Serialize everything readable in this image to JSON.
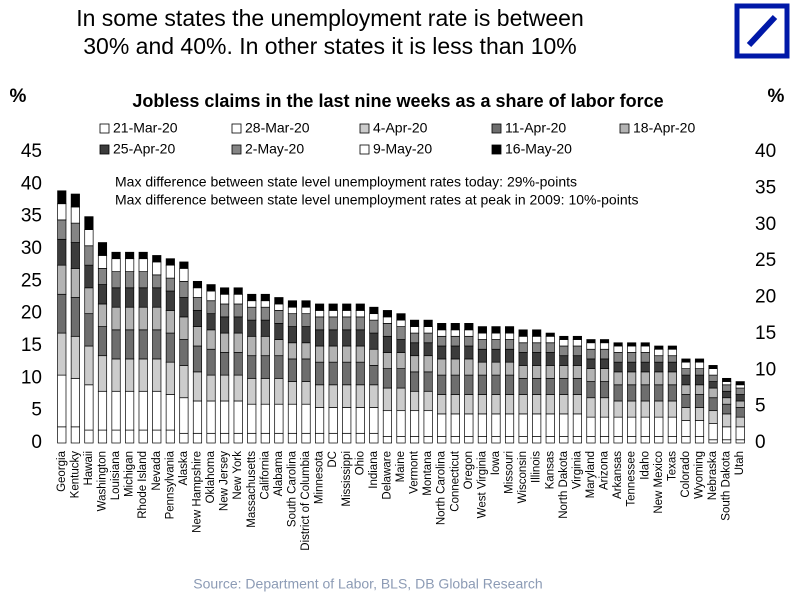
{
  "chart_data": {
    "type": "bar",
    "stacked": true,
    "title": [
      "In some states the unemployment rate is between",
      "30% and 40%. In other states it is less than 10%"
    ],
    "subtitle": "Jobless claims in the last nine weeks as a share of labor force",
    "y_label": "%",
    "y2_label": "%",
    "annotations": [
      "Max difference between state level unemployment rates today: 29%-points",
      "Max difference between state level unemployment rates at peak in 2009: 10%-points"
    ],
    "source": "Source: Department of Labor, BLS, DB Global Research",
    "ylim": [
      0,
      45
    ],
    "yticks": [
      0,
      5,
      10,
      15,
      20,
      25,
      30,
      35,
      40,
      45
    ],
    "y2lim": [
      0,
      40
    ],
    "y2ticks": [
      0,
      5,
      10,
      15,
      20,
      25,
      30,
      35,
      40
    ],
    "grid": false,
    "categories": [
      "Georgia",
      "Kentucky",
      "Hawaii",
      "Washington",
      "Louisiana",
      "Michigan",
      "Rhode Island",
      "Nevada",
      "Pennsylvania",
      "Alaska",
      "New Hampshire",
      "Oklahoma",
      "New Jersey",
      "New York",
      "Massachusetts",
      "California",
      "Alabama",
      "South Carolina",
      "District of Columbia",
      "Minnesota",
      "DC",
      "Mississippi",
      "Ohio",
      "Indiana",
      "Delaware",
      "Maine",
      "Vermont",
      "Montana",
      "North Carolina",
      "Connecticut",
      "Oregon",
      "West Virginia",
      "Iowa",
      "Missouri",
      "Wisconsin",
      "Illinois",
      "Kansas",
      "North Dakota",
      "Virginia",
      "Maryland",
      "Arizona",
      "Arkansas",
      "Tennessee",
      "Idaho",
      "New Mexico",
      "Texas",
      "Colorado",
      "Wyoming",
      "Nebraska",
      "South Dakota",
      "Utah"
    ],
    "series": [
      {
        "name": "21-Mar-20",
        "color": "#ffffff",
        "values": [
          2.5,
          2.5,
          2,
          2,
          2,
          2,
          2,
          2,
          2,
          1.5,
          1.5,
          1.5,
          1.5,
          1.5,
          1.5,
          1.5,
          1.5,
          1.5,
          1.5,
          1.5,
          1.5,
          1.5,
          1.5,
          1.5,
          1,
          1,
          1,
          1,
          1,
          1,
          1,
          1,
          1,
          1,
          1,
          1,
          1,
          1,
          1,
          1,
          1,
          1,
          1,
          1,
          1,
          1,
          1,
          1,
          0.5,
          0.5,
          0.5
        ]
      },
      {
        "name": "28-Mar-20",
        "color": "#ffffff",
        "values": [
          8,
          7.5,
          7,
          6,
          6,
          6,
          6,
          6,
          5.5,
          5.5,
          5,
          5,
          5,
          5,
          4.5,
          4.5,
          4.5,
          4.5,
          4.5,
          4,
          4,
          4,
          4,
          4,
          4,
          4,
          4,
          4,
          3.5,
          3.5,
          3.5,
          3.5,
          3.5,
          3.5,
          3.5,
          3.5,
          3.5,
          3.5,
          3.5,
          3,
          3,
          3,
          3,
          3,
          3,
          3,
          2.5,
          2.5,
          2.5,
          2,
          2
        ]
      },
      {
        "name": "4-Apr-20",
        "color": "#cccccc",
        "values": [
          6.5,
          6.5,
          6,
          5.5,
          5,
          5,
          5,
          5,
          5,
          5,
          4.5,
          4,
          4,
          4,
          4,
          4,
          4,
          3.5,
          3.5,
          3.5,
          3.5,
          3.5,
          3.5,
          3.5,
          3.5,
          3.5,
          3,
          3,
          3,
          3,
          3,
          3,
          3,
          3,
          3,
          3,
          3,
          3,
          3,
          3,
          3,
          2.5,
          2.5,
          2.5,
          2.5,
          2.5,
          2,
          2,
          2,
          2,
          1.5
        ]
      },
      {
        "name": "11-Apr-20",
        "color": "#6e6e6e",
        "values": [
          6,
          6,
          5,
          4.5,
          4.5,
          4.5,
          4.5,
          4.5,
          4.5,
          4,
          4,
          4,
          3.5,
          3.5,
          3.5,
          3.5,
          3.5,
          3.5,
          3.5,
          3.5,
          3.5,
          3.5,
          3.5,
          3,
          3,
          3,
          3,
          3,
          3,
          3,
          3,
          3,
          3,
          3,
          2.5,
          2.5,
          2.5,
          2.5,
          2.5,
          2.5,
          2.5,
          2.5,
          2.5,
          2.5,
          2.5,
          2.5,
          2,
          2,
          2,
          1.5,
          1.5
        ]
      },
      {
        "name": "18-Apr-20",
        "color": "#b3b3b3",
        "values": [
          4.5,
          4.5,
          4,
          3.5,
          3.5,
          3.5,
          3.5,
          3.5,
          3.5,
          3.5,
          3,
          3,
          3,
          3,
          3,
          3,
          2.5,
          2.5,
          2.5,
          2.5,
          2.5,
          2.5,
          2.5,
          2.5,
          2.5,
          2.5,
          2.5,
          2.5,
          2.5,
          2.5,
          2.5,
          2,
          2,
          2,
          2,
          2,
          2,
          2,
          2,
          2,
          2,
          2,
          2,
          2,
          2,
          2,
          1.5,
          1.5,
          1.5,
          1,
          1
        ]
      },
      {
        "name": "25-Apr-20",
        "color": "#3c3c3c",
        "values": [
          4,
          4,
          3.5,
          3,
          3,
          3,
          3,
          3,
          3,
          3,
          2.5,
          2.5,
          2.5,
          2.5,
          2.5,
          2.5,
          2.5,
          2.5,
          2.5,
          2.5,
          2.5,
          2.5,
          2.5,
          2.5,
          2.5,
          2,
          2,
          2,
          2,
          2,
          2,
          2,
          2,
          2,
          2,
          2,
          2,
          1.5,
          1.5,
          1.5,
          1.5,
          1.5,
          1.5,
          1.5,
          1.5,
          1.5,
          1.5,
          1.5,
          1,
          1,
          1
        ]
      },
      {
        "name": "2-May-20",
        "color": "#858585",
        "values": [
          3,
          3,
          3,
          2.5,
          2.5,
          2.5,
          2.5,
          2,
          2,
          2.5,
          2,
          2,
          2,
          2,
          2,
          2,
          2,
          2,
          2,
          2,
          2,
          2,
          2,
          2,
          2,
          2,
          1.5,
          1.5,
          1.5,
          1.5,
          1.5,
          1.5,
          1.5,
          1.5,
          1.5,
          1.5,
          1.5,
          1.5,
          1.5,
          1.5,
          1.5,
          1.5,
          1.5,
          1.5,
          1,
          1,
          1,
          1,
          1,
          1,
          1
        ]
      },
      {
        "name": "9-May-20",
        "color": "#ffffff",
        "values": [
          2.5,
          2.5,
          2.5,
          2,
          2,
          2,
          2,
          2,
          2,
          2,
          1.5,
          1.5,
          1.5,
          1.5,
          1,
          1,
          1,
          1,
          1,
          1,
          1,
          1,
          1,
          1,
          1,
          1,
          1,
          1,
          1,
          1,
          1,
          1,
          1,
          1,
          1,
          1,
          1,
          1,
          1,
          1,
          1,
          1,
          1,
          1,
          1,
          1,
          1,
          1,
          1,
          0.5,
          0.5
        ]
      },
      {
        "name": "16-May-20",
        "color": "#000000",
        "values": [
          2,
          2,
          2,
          2,
          1,
          1,
          1,
          1,
          1,
          1,
          1,
          1,
          1,
          1,
          1,
          1,
          1,
          1,
          1,
          1,
          1,
          1,
          1,
          1,
          1,
          1,
          1,
          1,
          1,
          1,
          1,
          1,
          1,
          1,
          1,
          1,
          0.5,
          0.5,
          0.5,
          0.5,
          0.5,
          0.5,
          0.5,
          0.5,
          0.5,
          0.5,
          0.5,
          0.5,
          0.5,
          0.5,
          0.5
        ]
      }
    ]
  }
}
